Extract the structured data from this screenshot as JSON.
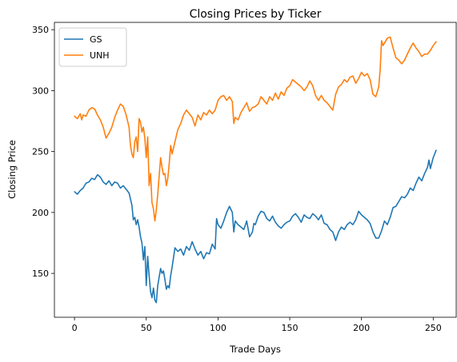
{
  "chart_data": {
    "type": "line",
    "title": "Closing Prices by Ticker",
    "xlabel": "Trade Days",
    "ylabel": "Closing Price",
    "xlim": [
      -14,
      266
    ],
    "ylim": [
      114,
      356
    ],
    "xticks": [
      0,
      50,
      100,
      150,
      200,
      250
    ],
    "yticks": [
      150,
      200,
      250,
      300,
      350
    ],
    "grid": false,
    "legend_position": "top-left",
    "series": [
      {
        "name": "GS",
        "color": "#1f77b4",
        "points": [
          [
            0,
            217
          ],
          [
            2,
            215
          ],
          [
            4,
            218
          ],
          [
            6,
            220
          ],
          [
            8,
            224
          ],
          [
            10,
            225
          ],
          [
            12,
            228
          ],
          [
            14,
            227
          ],
          [
            16,
            231
          ],
          [
            18,
            229
          ],
          [
            20,
            225
          ],
          [
            22,
            223
          ],
          [
            24,
            226
          ],
          [
            26,
            222
          ],
          [
            28,
            225
          ],
          [
            30,
            224
          ],
          [
            32,
            220
          ],
          [
            34,
            222
          ],
          [
            36,
            219
          ],
          [
            38,
            216
          ],
          [
            40,
            206
          ],
          [
            41,
            194
          ],
          [
            42,
            196
          ],
          [
            43,
            190
          ],
          [
            44,
            194
          ],
          [
            45,
            188
          ],
          [
            46,
            180
          ],
          [
            47,
            175
          ],
          [
            48,
            161
          ],
          [
            49,
            172
          ],
          [
            50,
            140
          ],
          [
            51,
            164
          ],
          [
            52,
            148
          ],
          [
            53,
            135
          ],
          [
            54,
            130
          ],
          [
            55,
            138
          ],
          [
            56,
            128
          ],
          [
            57,
            126
          ],
          [
            58,
            140
          ],
          [
            59,
            147
          ],
          [
            60,
            154
          ],
          [
            61,
            150
          ],
          [
            62,
            152
          ],
          [
            63,
            145
          ],
          [
            64,
            137
          ],
          [
            65,
            140
          ],
          [
            66,
            138
          ],
          [
            67,
            148
          ],
          [
            68,
            155
          ],
          [
            69,
            163
          ],
          [
            70,
            171
          ],
          [
            72,
            168
          ],
          [
            74,
            170
          ],
          [
            76,
            165
          ],
          [
            78,
            172
          ],
          [
            80,
            169
          ],
          [
            82,
            176
          ],
          [
            84,
            170
          ],
          [
            86,
            165
          ],
          [
            88,
            168
          ],
          [
            90,
            162
          ],
          [
            92,
            167
          ],
          [
            94,
            166
          ],
          [
            95,
            170
          ],
          [
            96,
            174
          ],
          [
            98,
            170
          ],
          [
            99,
            195
          ],
          [
            100,
            190
          ],
          [
            102,
            187
          ],
          [
            104,
            193
          ],
          [
            106,
            200
          ],
          [
            108,
            205
          ],
          [
            110,
            200
          ],
          [
            111,
            184
          ],
          [
            112,
            193
          ],
          [
            114,
            190
          ],
          [
            116,
            188
          ],
          [
            118,
            186
          ],
          [
            120,
            193
          ],
          [
            122,
            180
          ],
          [
            124,
            184
          ],
          [
            125,
            191
          ],
          [
            126,
            190
          ],
          [
            128,
            197
          ],
          [
            130,
            201
          ],
          [
            132,
            200
          ],
          [
            134,
            195
          ],
          [
            136,
            193
          ],
          [
            138,
            197
          ],
          [
            140,
            192
          ],
          [
            142,
            189
          ],
          [
            144,
            187
          ],
          [
            146,
            190
          ],
          [
            148,
            192
          ],
          [
            150,
            193
          ],
          [
            152,
            197
          ],
          [
            154,
            199
          ],
          [
            156,
            196
          ],
          [
            158,
            192
          ],
          [
            160,
            198
          ],
          [
            162,
            196
          ],
          [
            164,
            195
          ],
          [
            166,
            199
          ],
          [
            168,
            197
          ],
          [
            170,
            194
          ],
          [
            172,
            198
          ],
          [
            174,
            191
          ],
          [
            176,
            190
          ],
          [
            178,
            186
          ],
          [
            180,
            184
          ],
          [
            182,
            177
          ],
          [
            184,
            184
          ],
          [
            186,
            188
          ],
          [
            188,
            186
          ],
          [
            190,
            190
          ],
          [
            192,
            192
          ],
          [
            194,
            190
          ],
          [
            196,
            194
          ],
          [
            198,
            201
          ],
          [
            200,
            198
          ],
          [
            202,
            196
          ],
          [
            204,
            194
          ],
          [
            206,
            191
          ],
          [
            208,
            184
          ],
          [
            210,
            179
          ],
          [
            212,
            179
          ],
          [
            214,
            185
          ],
          [
            216,
            193
          ],
          [
            218,
            190
          ],
          [
            220,
            196
          ],
          [
            222,
            204
          ],
          [
            224,
            205
          ],
          [
            226,
            209
          ],
          [
            228,
            213
          ],
          [
            230,
            212
          ],
          [
            232,
            215
          ],
          [
            234,
            220
          ],
          [
            236,
            218
          ],
          [
            238,
            224
          ],
          [
            240,
            229
          ],
          [
            242,
            226
          ],
          [
            244,
            232
          ],
          [
            246,
            237
          ],
          [
            247,
            243
          ],
          [
            248,
            236
          ],
          [
            250,
            245
          ],
          [
            252,
            251
          ]
        ]
      },
      {
        "name": "UNH",
        "color": "#ff7f0e",
        "points": [
          [
            0,
            279
          ],
          [
            2,
            277
          ],
          [
            4,
            281
          ],
          [
            5,
            276
          ],
          [
            6,
            280
          ],
          [
            8,
            279
          ],
          [
            10,
            284
          ],
          [
            12,
            286
          ],
          [
            14,
            285
          ],
          [
            16,
            280
          ],
          [
            18,
            276
          ],
          [
            20,
            270
          ],
          [
            22,
            261
          ],
          [
            24,
            265
          ],
          [
            26,
            270
          ],
          [
            28,
            278
          ],
          [
            30,
            284
          ],
          [
            32,
            289
          ],
          [
            34,
            287
          ],
          [
            36,
            280
          ],
          [
            38,
            270
          ],
          [
            39,
            255
          ],
          [
            40,
            248
          ],
          [
            41,
            245
          ],
          [
            42,
            258
          ],
          [
            43,
            262
          ],
          [
            44,
            250
          ],
          [
            45,
            277
          ],
          [
            46,
            274
          ],
          [
            47,
            266
          ],
          [
            48,
            270
          ],
          [
            49,
            261
          ],
          [
            50,
            245
          ],
          [
            51,
            262
          ],
          [
            52,
            222
          ],
          [
            53,
            232
          ],
          [
            54,
            208
          ],
          [
            55,
            203
          ],
          [
            56,
            193
          ],
          [
            57,
            202
          ],
          [
            58,
            215
          ],
          [
            59,
            230
          ],
          [
            60,
            245
          ],
          [
            61,
            237
          ],
          [
            62,
            231
          ],
          [
            63,
            232
          ],
          [
            64,
            222
          ],
          [
            65,
            228
          ],
          [
            66,
            240
          ],
          [
            67,
            255
          ],
          [
            68,
            248
          ],
          [
            70,
            258
          ],
          [
            72,
            268
          ],
          [
            74,
            273
          ],
          [
            76,
            280
          ],
          [
            78,
            284
          ],
          [
            80,
            281
          ],
          [
            82,
            278
          ],
          [
            84,
            271
          ],
          [
            86,
            280
          ],
          [
            88,
            276
          ],
          [
            90,
            282
          ],
          [
            92,
            280
          ],
          [
            94,
            284
          ],
          [
            96,
            281
          ],
          [
            98,
            284
          ],
          [
            100,
            292
          ],
          [
            102,
            295
          ],
          [
            104,
            296
          ],
          [
            106,
            292
          ],
          [
            108,
            295
          ],
          [
            110,
            291
          ],
          [
            111,
            273
          ],
          [
            112,
            278
          ],
          [
            114,
            276
          ],
          [
            116,
            282
          ],
          [
            118,
            286
          ],
          [
            120,
            290
          ],
          [
            122,
            283
          ],
          [
            124,
            286
          ],
          [
            126,
            287
          ],
          [
            128,
            289
          ],
          [
            130,
            295
          ],
          [
            132,
            292
          ],
          [
            134,
            289
          ],
          [
            136,
            295
          ],
          [
            138,
            292
          ],
          [
            140,
            298
          ],
          [
            142,
            293
          ],
          [
            144,
            299
          ],
          [
            146,
            296
          ],
          [
            148,
            302
          ],
          [
            150,
            304
          ],
          [
            152,
            309
          ],
          [
            154,
            307
          ],
          [
            156,
            305
          ],
          [
            158,
            303
          ],
          [
            160,
            300
          ],
          [
            162,
            303
          ],
          [
            164,
            308
          ],
          [
            166,
            304
          ],
          [
            168,
            296
          ],
          [
            170,
            292
          ],
          [
            172,
            296
          ],
          [
            174,
            292
          ],
          [
            176,
            290
          ],
          [
            178,
            287
          ],
          [
            180,
            284
          ],
          [
            182,
            297
          ],
          [
            184,
            303
          ],
          [
            186,
            305
          ],
          [
            188,
            309
          ],
          [
            190,
            307
          ],
          [
            192,
            311
          ],
          [
            194,
            312
          ],
          [
            196,
            306
          ],
          [
            198,
            310
          ],
          [
            200,
            315
          ],
          [
            202,
            312
          ],
          [
            204,
            314
          ],
          [
            206,
            309
          ],
          [
            208,
            297
          ],
          [
            210,
            295
          ],
          [
            212,
            303
          ],
          [
            213,
            317
          ],
          [
            214,
            341
          ],
          [
            215,
            337
          ],
          [
            216,
            339
          ],
          [
            218,
            343
          ],
          [
            220,
            344
          ],
          [
            222,
            335
          ],
          [
            224,
            327
          ],
          [
            226,
            325
          ],
          [
            228,
            322
          ],
          [
            230,
            325
          ],
          [
            232,
            330
          ],
          [
            234,
            335
          ],
          [
            236,
            339
          ],
          [
            238,
            335
          ],
          [
            240,
            332
          ],
          [
            242,
            328
          ],
          [
            244,
            330
          ],
          [
            246,
            330
          ],
          [
            248,
            333
          ],
          [
            250,
            337
          ],
          [
            252,
            340
          ]
        ]
      }
    ]
  }
}
